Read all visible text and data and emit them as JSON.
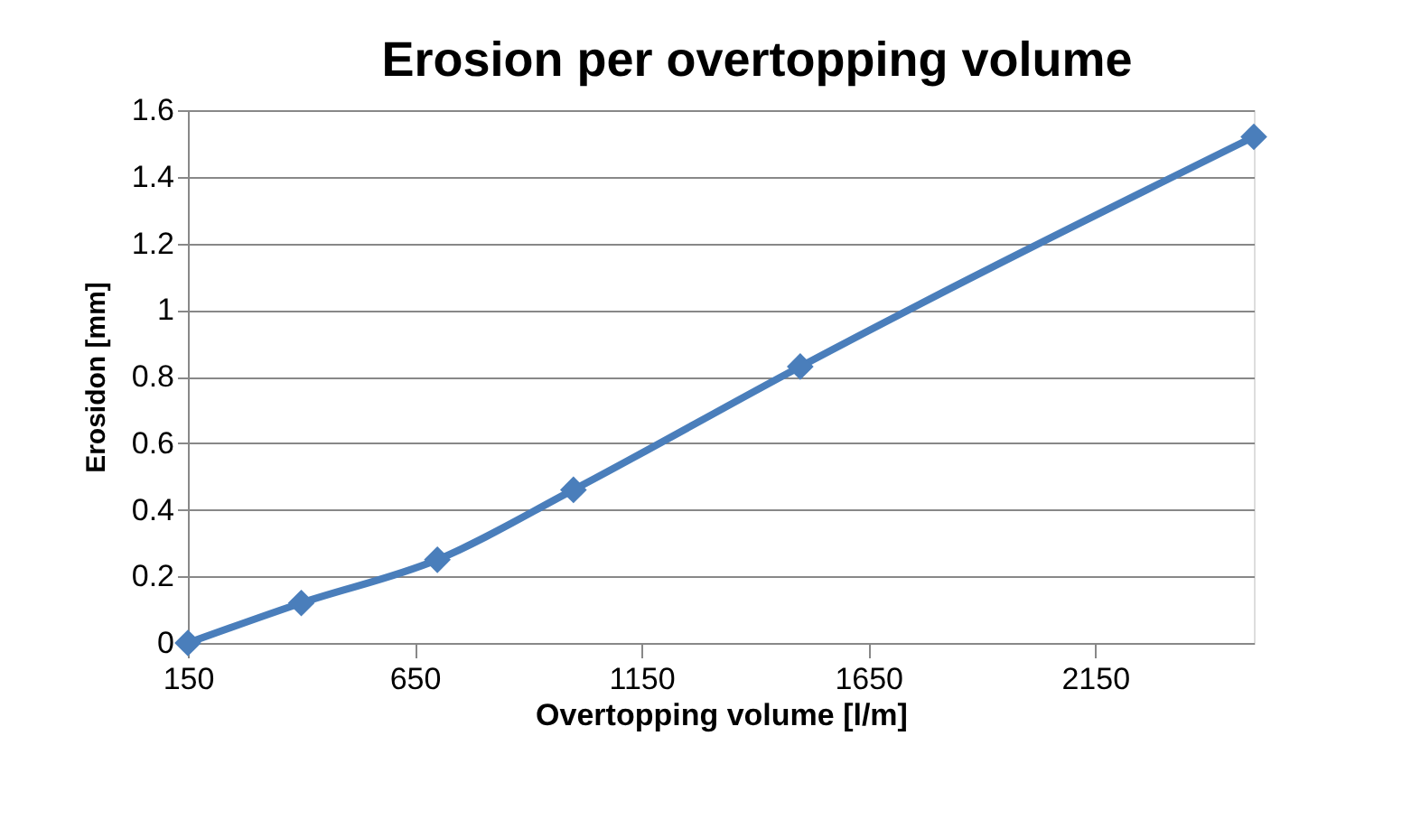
{
  "chart_data": {
    "type": "line",
    "title": "Erosion per overtopping volume",
    "xlabel": "Overtopping volume [l/m]",
    "ylabel": "Erosidon [mm]",
    "x": [
      150,
      400,
      700,
      1000,
      1500,
      2500
    ],
    "series": [
      {
        "color": "#4a7ebb",
        "values": [
          0,
          0.12,
          0.25,
          0.46,
          0.83,
          1.52
        ]
      }
    ],
    "xlim": [
      150,
      2500
    ],
    "xticks": [
      150,
      650,
      1150,
      1650,
      2150
    ],
    "ylim": [
      0,
      1.6
    ],
    "yticks": [
      0,
      0.2,
      0.4,
      0.6,
      0.8,
      1,
      1.2,
      1.4,
      1.6
    ],
    "grid": "y",
    "marker": "diamond",
    "line_style": "solid",
    "legend": false
  }
}
